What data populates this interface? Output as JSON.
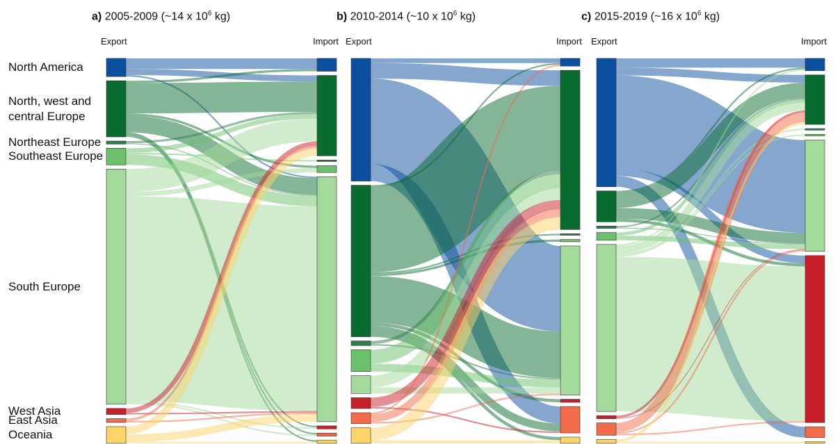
{
  "regions": [
    {
      "name": "North America",
      "color": "#0b4f9e"
    },
    {
      "name": "North, west and central Europe",
      "color": "#0a6b30"
    },
    {
      "name": "Northeast Europe",
      "color": "#2f7d4c"
    },
    {
      "name": "Southeast Europe",
      "color": "#6cc06c"
    },
    {
      "name": "South Europe",
      "color": "#a3d99a"
    },
    {
      "name": "West Asia",
      "color": "#c8202a"
    },
    {
      "name": "East Asia",
      "color": "#f26b4a"
    },
    {
      "name": "Oceania",
      "color": "#fdd46a"
    }
  ],
  "chart_data": [
    {
      "type": "sankey",
      "title": {
        "label": "a)",
        "text": "2005-2009 (~14 x 10",
        "sup": "6",
        "tail": " kg)"
      },
      "source_label": "Export",
      "target_label": "Import",
      "flows": [
        [
          0,
          0,
          14
        ],
        [
          0,
          1,
          8
        ],
        [
          0,
          4,
          2
        ],
        [
          1,
          1,
          40
        ],
        [
          1,
          4,
          22
        ],
        [
          1,
          0,
          3
        ],
        [
          1,
          3,
          3
        ],
        [
          1,
          5,
          2
        ],
        [
          1,
          6,
          2
        ],
        [
          1,
          7,
          2
        ],
        [
          2,
          1,
          3
        ],
        [
          2,
          4,
          1
        ],
        [
          3,
          4,
          14
        ],
        [
          3,
          1,
          6
        ],
        [
          3,
          2,
          2
        ],
        [
          4,
          4,
          270
        ],
        [
          4,
          1,
          30
        ],
        [
          4,
          3,
          6
        ],
        [
          4,
          5,
          2
        ],
        [
          4,
          6,
          2
        ],
        [
          5,
          1,
          6
        ],
        [
          5,
          4,
          2
        ],
        [
          6,
          1,
          3
        ],
        [
          6,
          4,
          2
        ],
        [
          7,
          1,
          10
        ],
        [
          7,
          4,
          10
        ],
        [
          7,
          7,
          2
        ]
      ]
    },
    {
      "type": "sankey",
      "title": {
        "label": "b)",
        "text": "2010-2014 (~10 x 10",
        "sup": "6",
        "tail": " kg)"
      },
      "source_label": "Export",
      "target_label": "Import",
      "flows": [
        [
          0,
          0,
          6
        ],
        [
          0,
          1,
          20
        ],
        [
          0,
          4,
          110
        ],
        [
          0,
          6,
          22
        ],
        [
          1,
          1,
          110
        ],
        [
          1,
          4,
          60
        ],
        [
          1,
          6,
          10
        ],
        [
          1,
          3,
          3
        ],
        [
          1,
          2,
          2
        ],
        [
          1,
          7,
          4
        ],
        [
          1,
          0,
          2
        ],
        [
          1,
          5,
          4
        ],
        [
          2,
          1,
          4
        ],
        [
          2,
          4,
          2
        ],
        [
          3,
          1,
          18
        ],
        [
          3,
          4,
          10
        ],
        [
          4,
          1,
          15
        ],
        [
          4,
          4,
          8
        ],
        [
          5,
          1,
          12
        ],
        [
          5,
          6,
          2
        ],
        [
          6,
          1,
          10
        ],
        [
          6,
          4,
          2
        ],
        [
          6,
          0,
          2
        ],
        [
          7,
          1,
          16
        ],
        [
          7,
          7,
          4
        ]
      ]
    },
    {
      "type": "sankey",
      "title": {
        "label": "c)",
        "text": "2015-2019 (~16 x 10",
        "sup": "6",
        "tail": " kg)"
      },
      "source_label": "Export",
      "target_label": "Import",
      "flows": [
        [
          0,
          0,
          12
        ],
        [
          0,
          4,
          120
        ],
        [
          0,
          1,
          10
        ],
        [
          0,
          6,
          14
        ],
        [
          0,
          5,
          10
        ],
        [
          1,
          1,
          20
        ],
        [
          1,
          4,
          14
        ],
        [
          1,
          5,
          4
        ],
        [
          1,
          0,
          2
        ],
        [
          2,
          1,
          2
        ],
        [
          2,
          4,
          1
        ],
        [
          3,
          1,
          4
        ],
        [
          3,
          4,
          6
        ],
        [
          4,
          5,
          200
        ],
        [
          4,
          1,
          10
        ],
        [
          4,
          3,
          2
        ],
        [
          4,
          2,
          2
        ],
        [
          4,
          0,
          2
        ],
        [
          5,
          1,
          3
        ],
        [
          5,
          4,
          1
        ],
        [
          6,
          1,
          12
        ],
        [
          6,
          5,
          2
        ],
        [
          6,
          4,
          2
        ],
        [
          7,
          1,
          3
        ],
        [
          7,
          7,
          2
        ]
      ]
    }
  ]
}
